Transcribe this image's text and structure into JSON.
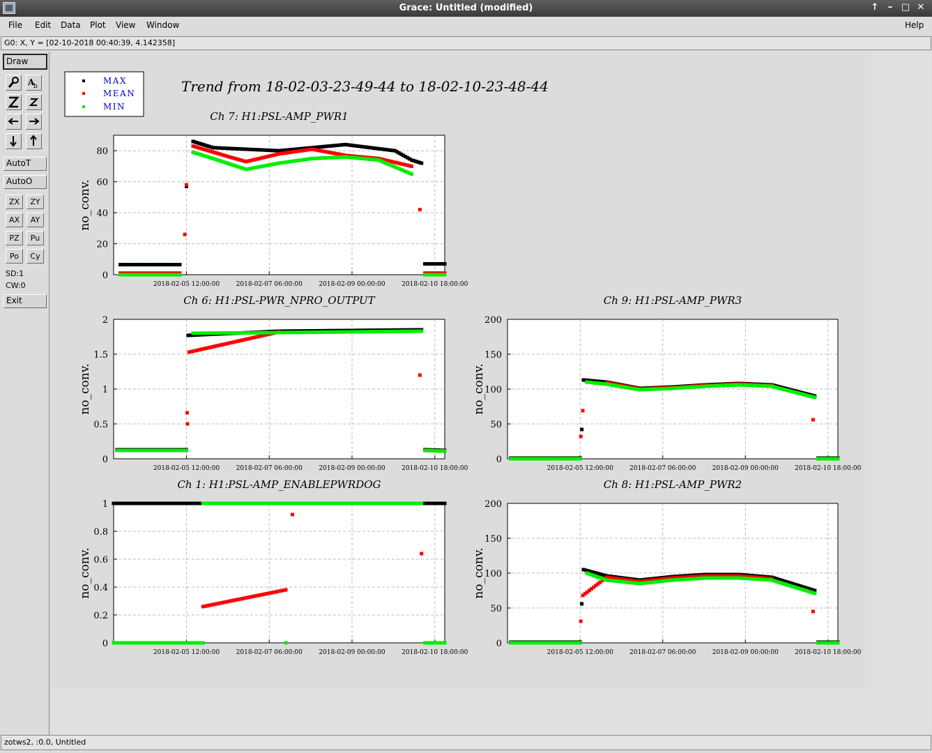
{
  "window": {
    "title": "Grace: Untitled (modified)",
    "controls": [
      "↑",
      "–",
      "□",
      "✕"
    ]
  },
  "menu": {
    "file": "File",
    "edit": "Edit",
    "data": "Data",
    "plot": "Plot",
    "view": "View",
    "window": "Window",
    "help": "Help"
  },
  "locator": "G0: X, Y = [02-10-2018 00:40:39, 4.142358]",
  "toolbar": {
    "draw": "Draw",
    "icons": [
      "zoom-icon",
      "text-icon",
      "zoom-in-icon",
      "zoom-out-icon",
      "left-arrow-icon",
      "right-arrow-icon",
      "down-arrow-icon",
      "up-arrow-icon"
    ],
    "autot": "AutoT",
    "autoo": "AutoO",
    "small": [
      "ZX",
      "ZY",
      "AX",
      "AY",
      "PZ",
      "Pu",
      "Po",
      "Cy"
    ],
    "sd": "SD:1",
    "cw": "CW:0",
    "exit": "Exit"
  },
  "status": "zotws2, :0.0, Untitled",
  "colors": {
    "max": "#000000",
    "mean": "#ff0000",
    "min": "#00ee00",
    "legend_text": "#0000cc"
  },
  "legend": {
    "max": "MAX",
    "mean": "MEAN",
    "min": "MIN"
  },
  "page_title": "Trend from 18-02-03-23-49-44 to 18-02-10-23-48-44",
  "chart_data": [
    {
      "type": "scatter",
      "title": "Ch 7: H1:PSL-AMP_PWR1",
      "ylabel": "no_conv.",
      "ylim": [
        0,
        90
      ],
      "yticks": [
        "0",
        "20",
        "40",
        "60",
        "80"
      ],
      "xticks": [
        "2018-02-05 12:00:00",
        "2018-02-07 06:00:00",
        "2018-02-09 00:00:00",
        "2018-02-10 18:00:00"
      ],
      "series": [
        {
          "name": "MAX",
          "values": [
            [
              0.02,
              6.5
            ],
            [
              0.2,
              6.5
            ],
            [
              0.22,
              57
            ],
            [
              0.24,
              86
            ],
            [
              0.3,
              82
            ],
            [
              0.5,
              80
            ],
            [
              0.7,
              84
            ],
            [
              0.85,
              80
            ],
            [
              0.9,
              74
            ],
            [
              0.93,
              72
            ],
            [
              0.94,
              7
            ],
            [
              1.0,
              7
            ]
          ]
        },
        {
          "name": "MEAN",
          "values": [
            [
              0.02,
              1
            ],
            [
              0.2,
              1
            ],
            [
              0.215,
              26
            ],
            [
              0.22,
              58
            ],
            [
              0.24,
              83
            ],
            [
              0.35,
              76
            ],
            [
              0.4,
              73
            ],
            [
              0.5,
              78
            ],
            [
              0.6,
              81
            ],
            [
              0.7,
              77
            ],
            [
              0.8,
              75
            ],
            [
              0.9,
              70
            ],
            [
              0.925,
              42
            ],
            [
              0.94,
              1
            ],
            [
              1.0,
              1
            ]
          ]
        },
        {
          "name": "MIN",
          "values": [
            [
              0.02,
              0
            ],
            [
              0.2,
              0
            ],
            [
              0.24,
              79
            ],
            [
              0.3,
              75
            ],
            [
              0.4,
              68
            ],
            [
              0.5,
              72
            ],
            [
              0.6,
              75
            ],
            [
              0.7,
              76
            ],
            [
              0.8,
              74
            ],
            [
              0.9,
              65
            ],
            [
              0.94,
              0
            ],
            [
              1.0,
              0
            ]
          ]
        }
      ]
    },
    {
      "type": "scatter",
      "title": "Ch 6: H1:PSL-PWR_NPRO_OUTPUT",
      "ylabel": "no_conv.",
      "ylim": [
        0,
        2
      ],
      "yticks": [
        "0",
        "0.5",
        "1",
        "1.5",
        "2"
      ],
      "xticks": [
        "2018-02-05 12:00:00",
        "2018-02-07 06:00:00",
        "2018-02-09 00:00:00",
        "2018-02-10 18:00:00"
      ],
      "series": [
        {
          "name": "MAX",
          "values": [
            [
              0.01,
              0.13
            ],
            [
              0.22,
              0.13
            ],
            [
              0.225,
              1.77
            ],
            [
              0.5,
              1.83
            ],
            [
              0.93,
              1.85
            ],
            [
              0.94,
              0.13
            ],
            [
              1.0,
              0.12
            ]
          ]
        },
        {
          "name": "MEAN",
          "values": [
            [
              0.01,
              0.12
            ],
            [
              0.22,
              0.12
            ],
            [
              0.222,
              0.66
            ],
            [
              0.223,
              0.5
            ],
            [
              0.228,
              1.53
            ],
            [
              0.5,
              1.82
            ],
            [
              0.925,
              1.2
            ],
            [
              0.94,
              0.12
            ],
            [
              1.0,
              0.11
            ]
          ]
        },
        {
          "name": "MIN",
          "values": [
            [
              0.01,
              0.12
            ],
            [
              0.22,
              0.12
            ],
            [
              0.24,
              1.8
            ],
            [
              0.5,
              1.81
            ],
            [
              0.93,
              1.83
            ],
            [
              0.94,
              0.12
            ],
            [
              1.0,
              0.11
            ]
          ]
        }
      ]
    },
    {
      "type": "scatter",
      "title": "Ch 9: H1:PSL-AMP_PWR3",
      "ylabel": "no_conv.",
      "ylim": [
        0,
        200
      ],
      "yticks": [
        "0",
        "50",
        "100",
        "150",
        "200"
      ],
      "xticks": [
        "2018-02-05 12:00:00",
        "2018-02-07 06:00:00",
        "2018-02-09 00:00:00",
        "2018-02-10 18:00:00"
      ],
      "series": [
        {
          "name": "MAX",
          "values": [
            [
              0.01,
              1
            ],
            [
              0.22,
              1
            ],
            [
              0.225,
              42
            ],
            [
              0.23,
              113
            ],
            [
              0.3,
              110
            ],
            [
              0.4,
              101
            ],
            [
              0.5,
              103
            ],
            [
              0.6,
              106
            ],
            [
              0.7,
              108
            ],
            [
              0.8,
              106
            ],
            [
              0.93,
              90
            ],
            [
              0.94,
              1
            ],
            [
              1.0,
              1
            ]
          ]
        },
        {
          "name": "MEAN",
          "values": [
            [
              0.01,
              0
            ],
            [
              0.22,
              0
            ],
            [
              0.222,
              32
            ],
            [
              0.228,
              69
            ],
            [
              0.3,
              109
            ],
            [
              0.4,
              100
            ],
            [
              0.5,
              102
            ],
            [
              0.6,
              105
            ],
            [
              0.7,
              107
            ],
            [
              0.8,
              105
            ],
            [
              0.925,
              56
            ],
            [
              0.94,
              0
            ],
            [
              1.0,
              0
            ]
          ]
        },
        {
          "name": "MIN",
          "values": [
            [
              0.01,
              0
            ],
            [
              0.22,
              0
            ],
            [
              0.24,
              110
            ],
            [
              0.3,
              107
            ],
            [
              0.4,
              99
            ],
            [
              0.5,
              101
            ],
            [
              0.6,
              104
            ],
            [
              0.7,
              106
            ],
            [
              0.8,
              104
            ],
            [
              0.93,
              88
            ],
            [
              0.94,
              0
            ],
            [
              1.0,
              0
            ]
          ]
        }
      ]
    },
    {
      "type": "scatter",
      "title": "Ch 1: H1:PSL-AMP_ENABLEPWRDOG",
      "ylabel": "no_conv.",
      "ylim": [
        0,
        1
      ],
      "yticks": [
        "0",
        "0.2",
        "0.4",
        "0.6",
        "0.8",
        "1"
      ],
      "xticks": [
        "2018-02-05 12:00:00",
        "2018-02-07 06:00:00",
        "2018-02-09 00:00:00",
        "2018-02-10 18:00:00"
      ],
      "series": [
        {
          "name": "MAX",
          "values": [
            [
              0.0,
              1
            ],
            [
              0.27,
              1
            ],
            [
              0.52,
              1
            ],
            [
              0.93,
              1
            ],
            [
              1.0,
              1
            ]
          ]
        },
        {
          "name": "MEAN",
          "values": [
            [
              0.27,
              0.26
            ],
            [
              0.52,
              0.38
            ],
            [
              0.54,
              0.92
            ],
            [
              0.93,
              0.64
            ]
          ]
        },
        {
          "name": "MIN",
          "values": [
            [
              0.0,
              0
            ],
            [
              0.27,
              0
            ],
            [
              0.27,
              1
            ],
            [
              0.52,
              1
            ],
            [
              0.52,
              0
            ],
            [
              0.53,
              1
            ],
            [
              0.93,
              1
            ],
            [
              0.94,
              0
            ],
            [
              1.0,
              0
            ]
          ]
        }
      ]
    },
    {
      "type": "scatter",
      "title": "Ch 8: H1:PSL-AMP_PWR2",
      "ylabel": "no_conv.",
      "ylim": [
        0,
        200
      ],
      "yticks": [
        "0",
        "50",
        "100",
        "150",
        "200"
      ],
      "xticks": [
        "2018-02-05 12:00:00",
        "2018-02-07 06:00:00",
        "2018-02-09 00:00:00",
        "2018-02-10 18:00:00"
      ],
      "series": [
        {
          "name": "MAX",
          "values": [
            [
              0.01,
              1
            ],
            [
              0.22,
              1
            ],
            [
              0.225,
              56
            ],
            [
              0.23,
              105
            ],
            [
              0.3,
              96
            ],
            [
              0.4,
              90
            ],
            [
              0.5,
              95
            ],
            [
              0.6,
              98
            ],
            [
              0.7,
              98
            ],
            [
              0.8,
              94
            ],
            [
              0.93,
              75
            ],
            [
              0.94,
              1
            ],
            [
              1.0,
              1
            ]
          ]
        },
        {
          "name": "MEAN",
          "values": [
            [
              0.01,
              0
            ],
            [
              0.22,
              0
            ],
            [
              0.222,
              31
            ],
            [
              0.228,
              68
            ],
            [
              0.3,
              94
            ],
            [
              0.4,
              88
            ],
            [
              0.5,
              93
            ],
            [
              0.6,
              96
            ],
            [
              0.7,
              96
            ],
            [
              0.8,
              92
            ],
            [
              0.925,
              45
            ],
            [
              0.94,
              0
            ],
            [
              1.0,
              0
            ]
          ]
        },
        {
          "name": "MIN",
          "values": [
            [
              0.01,
              0
            ],
            [
              0.22,
              0
            ],
            [
              0.24,
              100
            ],
            [
              0.3,
              90
            ],
            [
              0.4,
              85
            ],
            [
              0.5,
              90
            ],
            [
              0.6,
              93
            ],
            [
              0.7,
              93
            ],
            [
              0.8,
              90
            ],
            [
              0.93,
              71
            ],
            [
              0.94,
              0
            ],
            [
              1.0,
              0
            ]
          ]
        }
      ]
    }
  ]
}
